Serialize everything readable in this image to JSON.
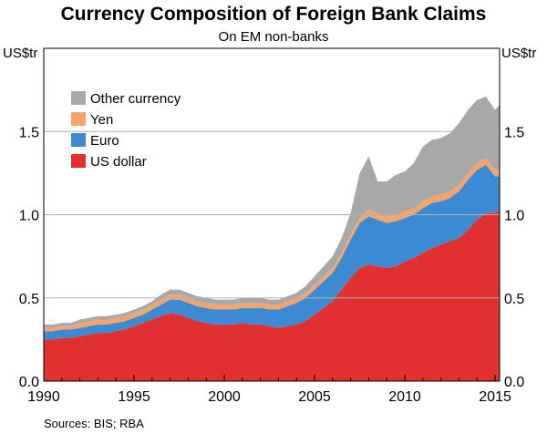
{
  "chart_data": {
    "type": "area",
    "stacked": true,
    "title": "Currency Composition of Foreign Bank Claims",
    "subtitle": "On EM non-banks",
    "ylabel_left": "US$tr",
    "ylabel_right": "US$tr",
    "xlim": [
      1990,
      2015.25
    ],
    "ylim": [
      0,
      2.0
    ],
    "x_ticks": [
      1990,
      1995,
      2000,
      2005,
      2010,
      2015
    ],
    "y_ticks": [
      0.0,
      0.5,
      1.0,
      1.5
    ],
    "y_tick_labels": [
      "0.0",
      "0.5",
      "1.0",
      "1.5"
    ],
    "x_tick_labels": [
      "1990",
      "1995",
      "2000",
      "2005",
      "2010",
      "2015"
    ],
    "grid": "horizontal",
    "legend_position": "top-left",
    "x": [
      1990.0,
      1990.5,
      1991.0,
      1991.5,
      1992.0,
      1992.5,
      1993.0,
      1993.5,
      1994.0,
      1994.5,
      1995.0,
      1995.5,
      1996.0,
      1996.5,
      1997.0,
      1997.5,
      1998.0,
      1998.5,
      1999.0,
      1999.5,
      2000.0,
      2000.5,
      2001.0,
      2001.5,
      2002.0,
      2002.5,
      2003.0,
      2003.5,
      2004.0,
      2004.5,
      2005.0,
      2005.5,
      2006.0,
      2006.5,
      2007.0,
      2007.5,
      2008.0,
      2008.5,
      2009.0,
      2009.5,
      2010.0,
      2010.5,
      2011.0,
      2011.5,
      2012.0,
      2012.5,
      2013.0,
      2013.5,
      2014.0,
      2014.5,
      2015.0,
      2015.25
    ],
    "series": [
      {
        "name": "US dollar",
        "color": "#e03030",
        "values": [
          0.25,
          0.25,
          0.26,
          0.26,
          0.27,
          0.28,
          0.29,
          0.29,
          0.3,
          0.31,
          0.33,
          0.35,
          0.37,
          0.39,
          0.41,
          0.4,
          0.38,
          0.36,
          0.35,
          0.34,
          0.34,
          0.34,
          0.35,
          0.34,
          0.34,
          0.33,
          0.32,
          0.33,
          0.34,
          0.36,
          0.4,
          0.44,
          0.48,
          0.55,
          0.62,
          0.68,
          0.7,
          0.69,
          0.68,
          0.69,
          0.72,
          0.74,
          0.77,
          0.8,
          0.82,
          0.84,
          0.86,
          0.91,
          0.97,
          1.01,
          1.01,
          1.03
        ]
      },
      {
        "name": "Euro",
        "color": "#3c8ad2",
        "values": [
          0.05,
          0.05,
          0.05,
          0.05,
          0.05,
          0.05,
          0.05,
          0.05,
          0.05,
          0.05,
          0.05,
          0.05,
          0.06,
          0.07,
          0.08,
          0.09,
          0.09,
          0.09,
          0.09,
          0.09,
          0.09,
          0.09,
          0.09,
          0.1,
          0.1,
          0.1,
          0.11,
          0.12,
          0.13,
          0.14,
          0.15,
          0.16,
          0.17,
          0.19,
          0.23,
          0.27,
          0.29,
          0.28,
          0.27,
          0.27,
          0.26,
          0.26,
          0.27,
          0.27,
          0.26,
          0.26,
          0.28,
          0.3,
          0.3,
          0.29,
          0.22,
          0.2
        ]
      },
      {
        "name": "Yen",
        "color": "#f4a46c",
        "values": [
          0.02,
          0.02,
          0.02,
          0.02,
          0.03,
          0.03,
          0.03,
          0.03,
          0.03,
          0.03,
          0.03,
          0.03,
          0.03,
          0.03,
          0.03,
          0.03,
          0.03,
          0.03,
          0.03,
          0.03,
          0.03,
          0.03,
          0.03,
          0.03,
          0.03,
          0.03,
          0.03,
          0.03,
          0.03,
          0.03,
          0.03,
          0.03,
          0.03,
          0.03,
          0.03,
          0.03,
          0.04,
          0.04,
          0.04,
          0.04,
          0.04,
          0.04,
          0.04,
          0.04,
          0.04,
          0.04,
          0.04,
          0.04,
          0.04,
          0.04,
          0.04,
          0.04
        ]
      },
      {
        "name": "Other currency",
        "color": "#a8a8a8",
        "values": [
          0.02,
          0.02,
          0.02,
          0.02,
          0.02,
          0.02,
          0.02,
          0.02,
          0.02,
          0.02,
          0.02,
          0.02,
          0.02,
          0.03,
          0.03,
          0.03,
          0.03,
          0.03,
          0.03,
          0.03,
          0.03,
          0.03,
          0.03,
          0.03,
          0.03,
          0.03,
          0.03,
          0.03,
          0.03,
          0.04,
          0.05,
          0.06,
          0.07,
          0.09,
          0.13,
          0.27,
          0.32,
          0.19,
          0.21,
          0.24,
          0.24,
          0.27,
          0.33,
          0.34,
          0.34,
          0.35,
          0.37,
          0.38,
          0.38,
          0.37,
          0.36,
          0.39
        ]
      }
    ],
    "source": "Sources:  BIS; RBA"
  }
}
